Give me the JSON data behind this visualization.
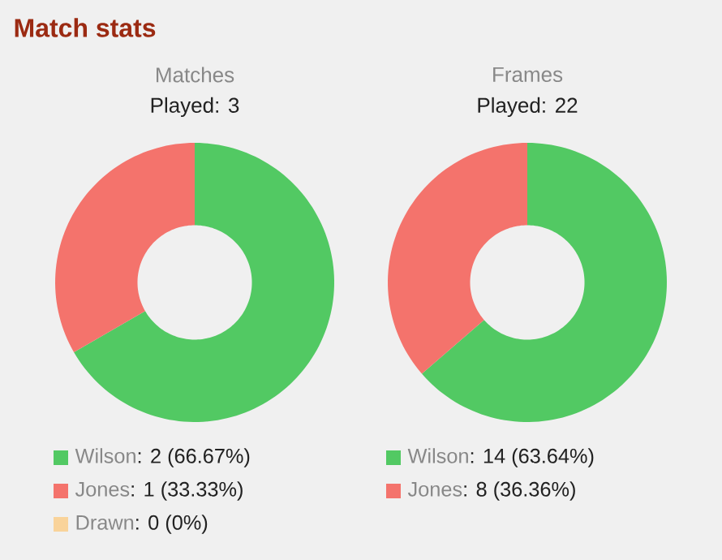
{
  "chart_data": [
    {
      "type": "donut",
      "title": "Matches",
      "subtitle": "Played: 3",
      "annotations": [
        "Match stats"
      ],
      "legend": "bottom",
      "categories": [
        "Wilson",
        "Jones",
        "Drawn"
      ],
      "values": [
        2,
        1,
        0
      ],
      "value_labels": [
        ": 2 (66.67%)",
        ": 1 (33.33%)",
        ": 0 (0%)"
      ],
      "colors": [
        "#52c963",
        "#f4736c",
        "#f9d39a"
      ]
    },
    {
      "type": "donut",
      "title": "Frames",
      "subtitle": "Played: 22",
      "legend": "bottom",
      "categories": [
        "Wilson",
        "Jones"
      ],
      "values": [
        14,
        8
      ],
      "value_labels": [
        ": 14 (63.64%)",
        ": 8 (36.36%)"
      ],
      "colors": [
        "#52c963",
        "#f4736c"
      ]
    }
  ]
}
